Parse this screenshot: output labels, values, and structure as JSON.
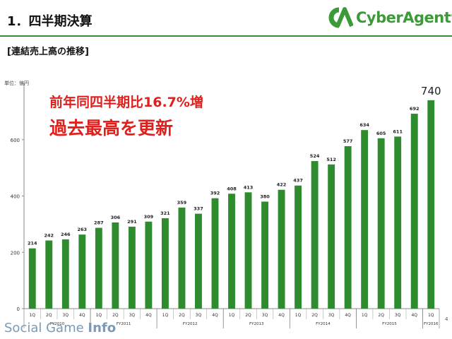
{
  "header": {
    "title": "1．四半期決算",
    "logo_text": "CyberAgent",
    "logo_mark": "®",
    "accent_color": "#3c9a38"
  },
  "subtitle": "[連結売上高の推移]",
  "unit": "単位：億円",
  "headline": {
    "line1": "前年同四半期比16.7%増",
    "line2": "過去最高を更新",
    "color": "#e0201c"
  },
  "page_number": "4",
  "watermark": {
    "part1": "Social Game ",
    "part2": "Info"
  },
  "chart_data": {
    "type": "bar",
    "bar_color": "#2e8b2e",
    "ylim": [
      0,
      800
    ],
    "yticks": [
      0,
      200,
      400,
      600
    ],
    "grid": false,
    "categories": [
      "1Q",
      "2Q",
      "3Q",
      "4Q",
      "1Q",
      "2Q",
      "3Q",
      "4Q",
      "1Q",
      "2Q",
      "3Q",
      "4Q",
      "1Q",
      "2Q",
      "3Q",
      "4Q",
      "1Q",
      "2Q",
      "3Q",
      "4Q",
      "1Q",
      "2Q",
      "3Q",
      "4Q",
      "1Q"
    ],
    "values": [
      214,
      242,
      246,
      263,
      287,
      306,
      291,
      309,
      321,
      359,
      337,
      392,
      408,
      413,
      380,
      422,
      437,
      524,
      512,
      577,
      634,
      605,
      611,
      692,
      740
    ],
    "fiscal_years": [
      {
        "label": "FY2010",
        "start": 0,
        "end": 3
      },
      {
        "label": "FY2011",
        "start": 4,
        "end": 7
      },
      {
        "label": "FY2012",
        "start": 8,
        "end": 11
      },
      {
        "label": "FY2013",
        "start": 12,
        "end": 15
      },
      {
        "label": "FY2014",
        "start": 16,
        "end": 19
      },
      {
        "label": "FY2015",
        "start": 20,
        "end": 23
      },
      {
        "label": "FY2016",
        "start": 24,
        "end": 24
      }
    ],
    "highlight_last": true
  }
}
